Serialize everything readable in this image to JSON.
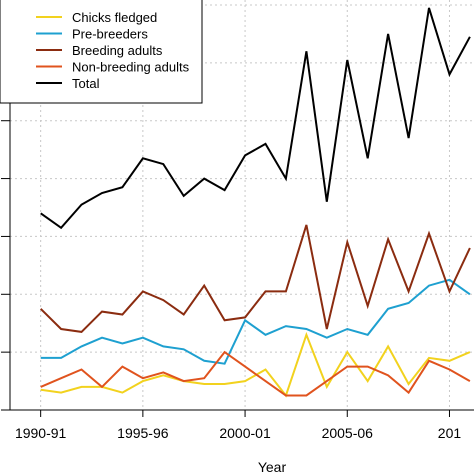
{
  "chart_data": {
    "type": "line",
    "title": "",
    "xlabel": "Year",
    "ylabel": "",
    "x": [
      1990,
      1991,
      1992,
      1993,
      1994,
      1995,
      1996,
      1997,
      1998,
      1999,
      2000,
      2001,
      2002,
      2003,
      2004,
      2005,
      2006,
      2007,
      2008,
      2009,
      2010,
      2011
    ],
    "x_tick_positions": [
      1990,
      1995,
      2000,
      2005,
      2010
    ],
    "x_tick_labels": [
      "1990-91",
      "1995-96",
      "2000-01",
      "2005-06",
      "201"
    ],
    "xlim": [
      1988.5,
      2011.2
    ],
    "ylim": [
      0,
      700
    ],
    "y_ticks": [
      0,
      100,
      200,
      300,
      400,
      500,
      600,
      700
    ],
    "grid": true,
    "legend_position": "top-left",
    "series": [
      {
        "name": "Chicks fledged",
        "color": "#f2d21e",
        "values": [
          35,
          30,
          40,
          40,
          30,
          50,
          60,
          50,
          45,
          45,
          50,
          70,
          25,
          130,
          40,
          100,
          50,
          110,
          45,
          90,
          85,
          100
        ]
      },
      {
        "name": "Pre-breeders",
        "color": "#1ea0d0",
        "values": [
          90,
          90,
          110,
          125,
          115,
          125,
          110,
          105,
          85,
          80,
          155,
          130,
          145,
          140,
          125,
          140,
          130,
          175,
          185,
          215,
          225,
          200
        ]
      },
      {
        "name": "Breeding adults",
        "color": "#8b2c10",
        "values": [
          175,
          140,
          135,
          170,
          165,
          205,
          190,
          165,
          215,
          155,
          160,
          205,
          205,
          320,
          140,
          290,
          180,
          295,
          205,
          305,
          205,
          280
        ]
      },
      {
        "name": "Non-breeding adults",
        "color": "#e0531e",
        "values": [
          40,
          55,
          70,
          40,
          75,
          55,
          65,
          50,
          55,
          100,
          75,
          50,
          25,
          25,
          50,
          75,
          75,
          60,
          30,
          85,
          70,
          50
        ]
      },
      {
        "name": "Total",
        "color": "#000000",
        "values": [
          340,
          315,
          355,
          375,
          385,
          435,
          425,
          370,
          400,
          380,
          440,
          460,
          400,
          620,
          360,
          605,
          435,
          650,
          470,
          695,
          580,
          645
        ]
      }
    ]
  }
}
